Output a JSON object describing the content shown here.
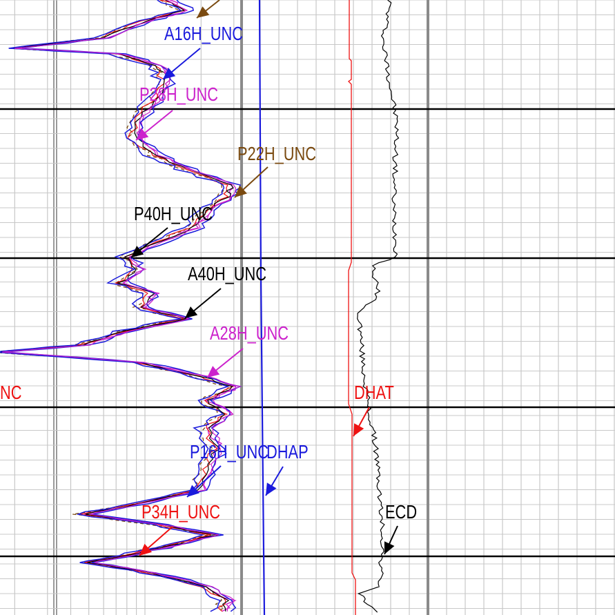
{
  "chart_data": {
    "type": "line",
    "title": "",
    "xlabel": "",
    "ylabel": "",
    "grid": true,
    "legend": "none (inline labels with leader arrows)",
    "track_separators": [
      "log-section",
      "linear-section"
    ],
    "depth_lines_count": 4,
    "series": [
      {
        "name": "A16H_UNC",
        "color": "#1a1adc",
        "label_text": "A16H_UNC"
      },
      {
        "name": "P28H_UNC",
        "color": "#cc22cc",
        "label_text": "P28H_UNC"
      },
      {
        "name": "P22H_UNC",
        "color": "#7a4a10",
        "label_text": "P22H_UNC"
      },
      {
        "name": "P40H_UNC",
        "color": "#000000",
        "label_text": "P40H_UNC"
      },
      {
        "name": "A40H_UNC",
        "color": "#000000",
        "label_text": "A40H_UNC"
      },
      {
        "name": "A28H_UNC",
        "color": "#cc22cc",
        "label_text": "A28H_UNC"
      },
      {
        "name": "P16H_UNC",
        "color": "#1a1adc",
        "label_text": "P16H_UNC"
      },
      {
        "name": "P34H_UNC",
        "color": "#ee1111",
        "label_text": "P34H_UNC"
      },
      {
        "name": "DHAP",
        "color": "#1a1adc",
        "label_text": "DHAP"
      },
      {
        "name": "DHAT",
        "color": "#ee1111",
        "label_text": "DHAT"
      },
      {
        "name": "ECD",
        "color": "#000000",
        "label_text": "ECD"
      }
    ],
    "cutoff_label": {
      "text": "NC",
      "color": "#ee1111"
    }
  }
}
